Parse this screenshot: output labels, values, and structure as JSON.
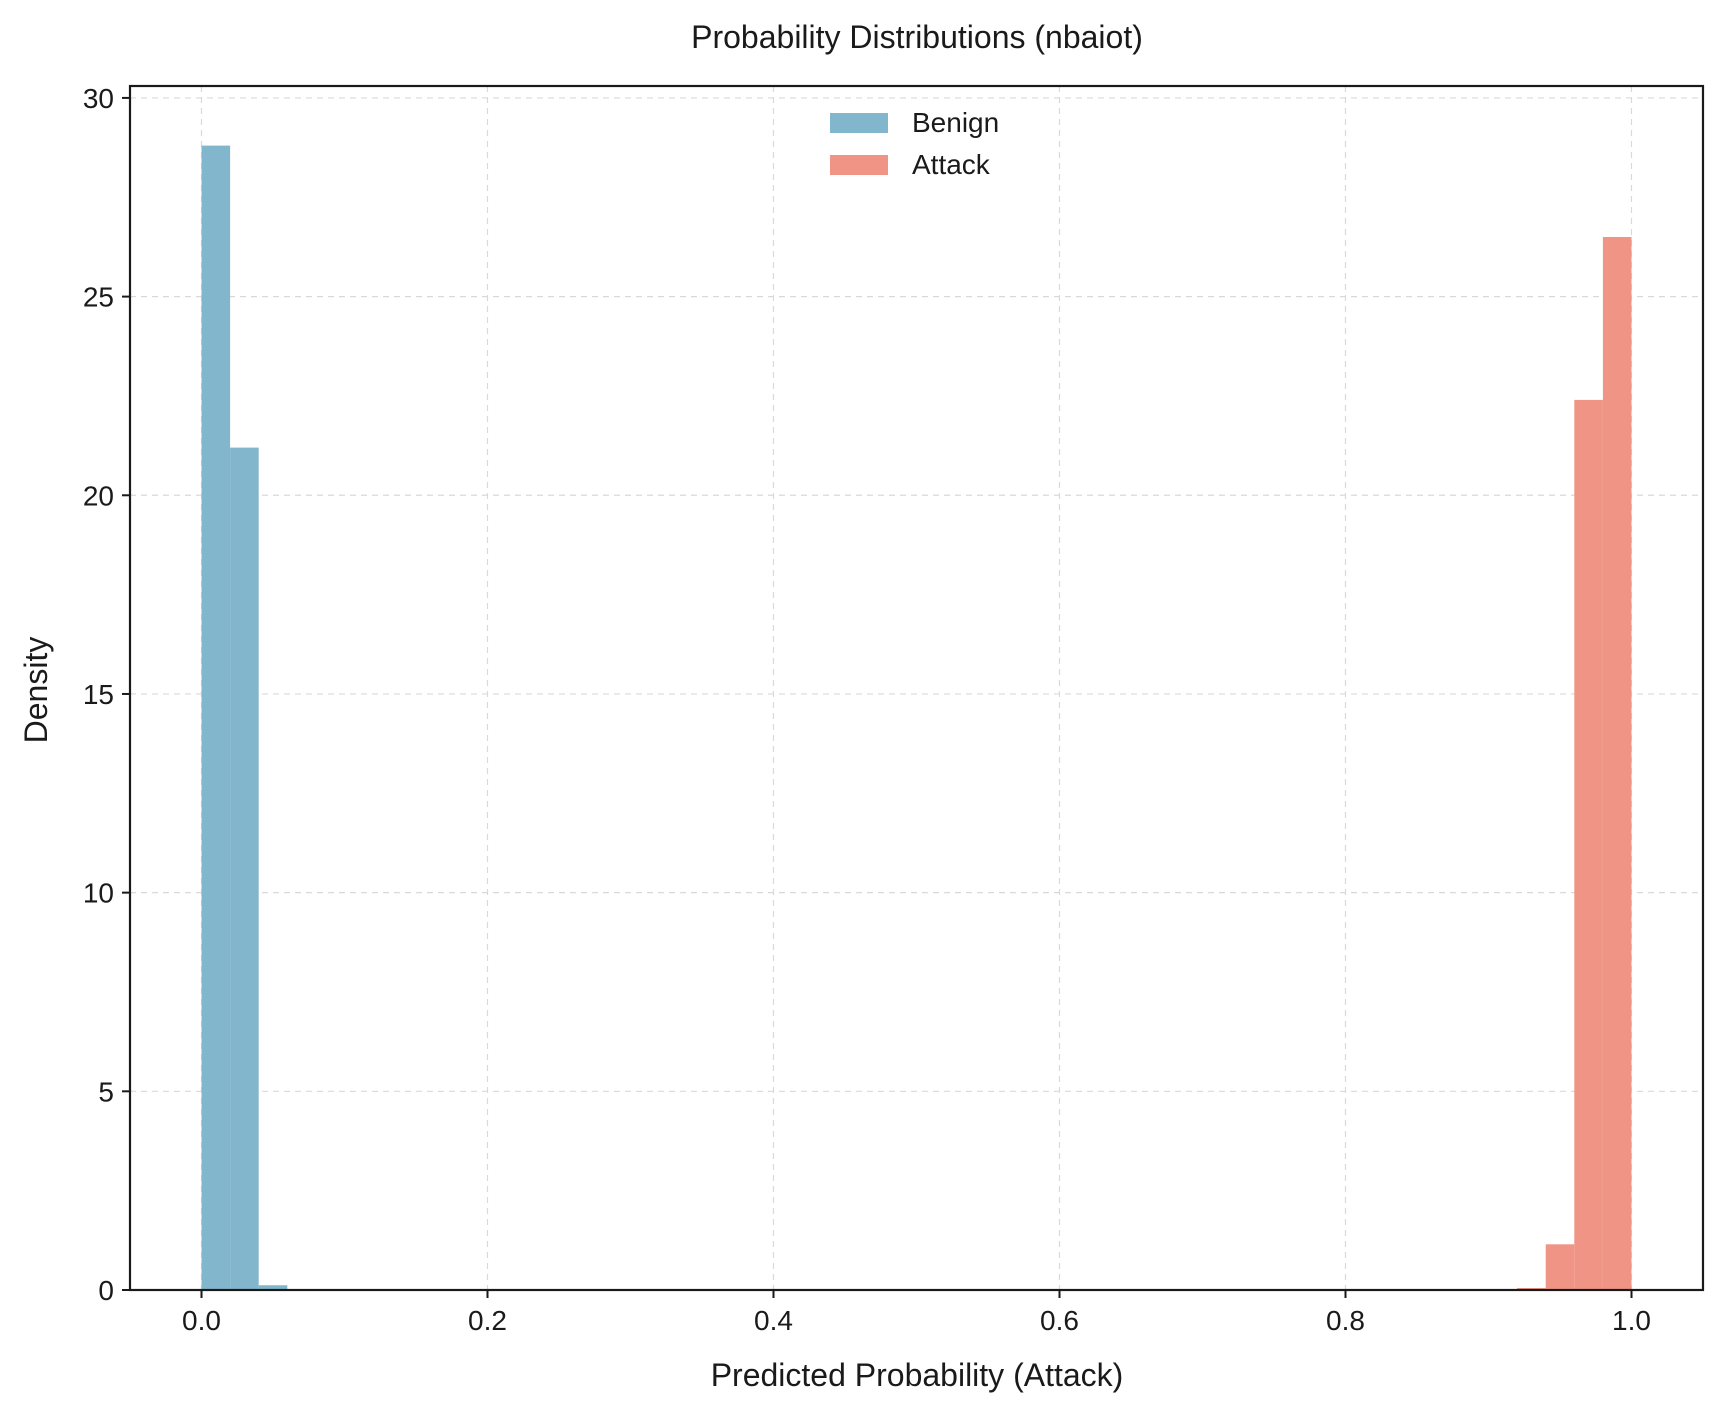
{
  "chart_data": {
    "type": "bar",
    "title": "Probability Distributions (nbaiot)",
    "xlabel": "Predicted Probability (Attack)",
    "ylabel": "Density",
    "xlim": [
      -0.05,
      1.05
    ],
    "ylim": [
      0,
      30.3
    ],
    "xticks": [
      0.0,
      0.2,
      0.4,
      0.6,
      0.8,
      1.0
    ],
    "xtick_labels": [
      "0.0",
      "0.2",
      "0.4",
      "0.6",
      "0.8",
      "1.0"
    ],
    "yticks": [
      0,
      5,
      10,
      15,
      20,
      25,
      30
    ],
    "ytick_labels": [
      "0",
      "5",
      "10",
      "15",
      "20",
      "25",
      "30"
    ],
    "grid": true,
    "legend_position": "top-center",
    "series": [
      {
        "name": "Benign",
        "color": "#82b6cc",
        "bins": [
          {
            "x0": 0.0,
            "x1": 0.02,
            "value": 28.8
          },
          {
            "x0": 0.02,
            "x1": 0.04,
            "value": 21.2
          },
          {
            "x0": 0.04,
            "x1": 0.06,
            "value": 0.12
          }
        ]
      },
      {
        "name": "Attack",
        "color": "#f09585",
        "bins": [
          {
            "x0": 0.92,
            "x1": 0.94,
            "value": 0.05
          },
          {
            "x0": 0.94,
            "x1": 0.96,
            "value": 1.15
          },
          {
            "x0": 0.96,
            "x1": 0.98,
            "value": 22.4
          },
          {
            "x0": 0.98,
            "x1": 1.0,
            "value": 26.5
          }
        ]
      }
    ]
  }
}
